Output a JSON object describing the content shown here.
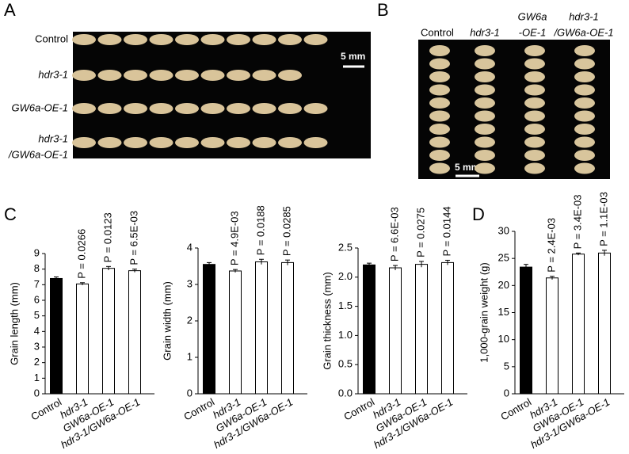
{
  "panel_labels": [
    "A",
    "B",
    "C",
    "D"
  ],
  "photo_a": {
    "rows": [
      [
        "Control"
      ],
      [
        "hdr3-1"
      ],
      [
        "GW6a-OE-1"
      ],
      [
        "hdr3-1",
        "/GW6a-OE-1"
      ]
    ],
    "scale_bar": "5 mm"
  },
  "photo_b": {
    "columns": [
      [
        "Control"
      ],
      [
        "hdr3-1"
      ],
      [
        "GW6a",
        "-OE-1"
      ],
      [
        "hdr3-1",
        "/GW6a-OE-1"
      ]
    ],
    "scale_bar": "5 mm"
  },
  "chart_data": [
    {
      "type": "bar",
      "y_label": "Grain length (mm)",
      "categories": [
        "Control",
        "hdr3-1",
        "GW6a-OE-1",
        "hdr3-1/GW6a-OE-1"
      ],
      "values": [
        7.4,
        7.05,
        8.05,
        7.9
      ],
      "errors": [
        0.1,
        0.08,
        0.12,
        0.1
      ],
      "colors": [
        "#000000",
        "#ffffff",
        "#ffffff",
        "#ffffff"
      ],
      "annotations": [
        null,
        "P = 0.0266",
        "P = 0.0123",
        "P = 6.5E-03"
      ],
      "ylim": [
        0,
        9
      ],
      "yticks": [
        0,
        1,
        2,
        3,
        4,
        5,
        6,
        7,
        8,
        9
      ]
    },
    {
      "type": "bar",
      "y_label": "Grain width (mm)",
      "categories": [
        "Control",
        "hdr3-1",
        "GW6a-OE-1",
        "hdr3-1/GW6a-OE-1"
      ],
      "values": [
        3.55,
        3.37,
        3.62,
        3.6
      ],
      "errors": [
        0.05,
        0.04,
        0.07,
        0.07
      ],
      "colors": [
        "#000000",
        "#ffffff",
        "#ffffff",
        "#ffffff"
      ],
      "annotations": [
        null,
        "P = 4.9E-03",
        "P = 0.0188",
        "P = 0.0285"
      ],
      "ylim": [
        0,
        4
      ],
      "yticks": [
        0,
        1,
        2,
        3,
        4
      ]
    },
    {
      "type": "bar",
      "y_label": "Grain thickness (mm)",
      "categories": [
        "Control",
        "hdr3-1",
        "GW6a-OE-1",
        "hdr3-1/GW6a-OE-1"
      ],
      "values": [
        2.21,
        2.16,
        2.22,
        2.25
      ],
      "errors": [
        0.03,
        0.04,
        0.05,
        0.04
      ],
      "colors": [
        "#000000",
        "#ffffff",
        "#ffffff",
        "#ffffff"
      ],
      "annotations": [
        null,
        "P = 6.6E-03",
        "P = 0.0275",
        "P = 0.0144"
      ],
      "ylim": [
        0,
        2.5
      ],
      "yticks": [
        {
          "value": 0,
          "label": "0.0"
        },
        0.5,
        {
          "value": 1,
          "label": "1.0"
        },
        1.5,
        {
          "value": 2,
          "label": "2.0"
        },
        2.5
      ]
    },
    {
      "type": "bar",
      "y_label": "1,000-grain weight (g)",
      "categories": [
        "Control",
        "hdr3-1",
        "GW6a-OE-1",
        "hdr3-1/GW6a-OE-1"
      ],
      "values": [
        23.4,
        21.4,
        25.8,
        26.0
      ],
      "errors": [
        0.5,
        0.3,
        0.2,
        0.5
      ],
      "colors": [
        "#000000",
        "#ffffff",
        "#ffffff",
        "#ffffff"
      ],
      "annotations": [
        null,
        "P = 2.4E-03",
        "P = 3.4E-03",
        "P = 1.1E-03"
      ],
      "ylim": [
        0,
        30
      ],
      "yticks": [
        0,
        5,
        10,
        15,
        20,
        25,
        30
      ]
    }
  ]
}
